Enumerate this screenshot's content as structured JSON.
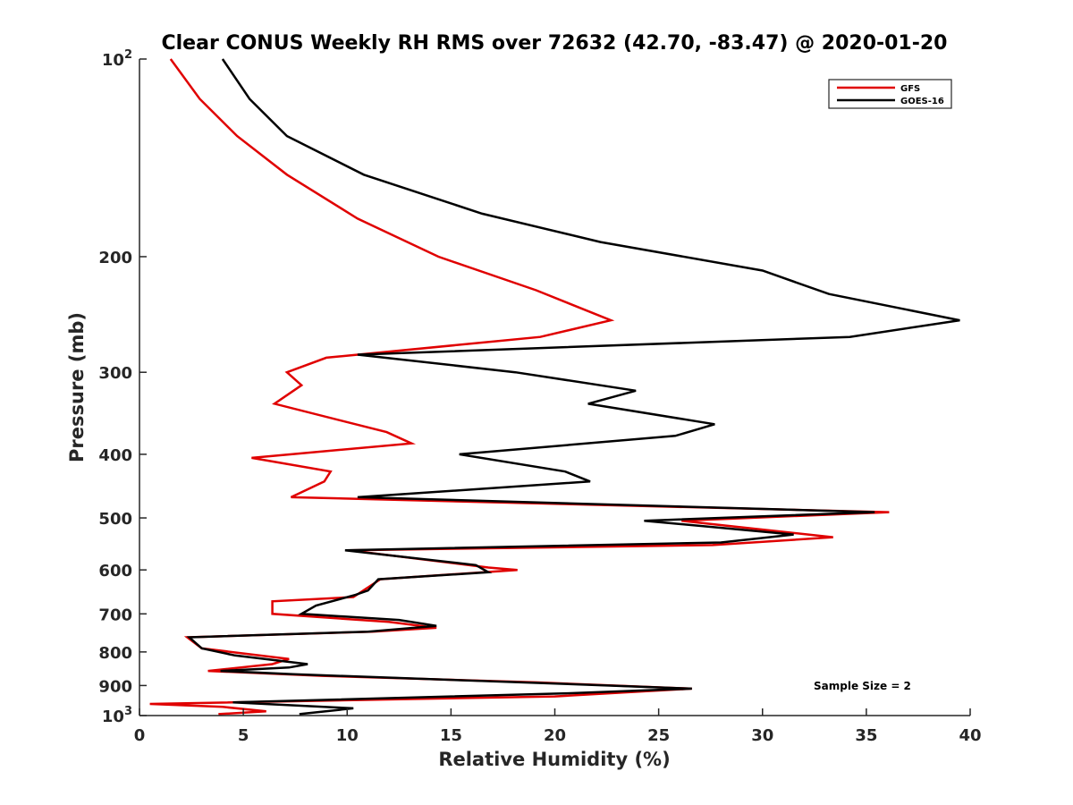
{
  "chart_data": {
    "type": "line",
    "title": "Clear CONUS Weekly RH RMS over 72632 (42.70, -83.47) @ 2020-01-20",
    "xlabel": "Relative Humidity (%)",
    "ylabel": "Pressure (mb)",
    "xlim": [
      0,
      40
    ],
    "ylim": [
      100,
      1000
    ],
    "y_scale": "log",
    "y_reversed": true,
    "x_ticks": [
      "0",
      "5",
      "10",
      "15",
      "20",
      "25",
      "30",
      "35",
      "40"
    ],
    "y_ticks": [
      {
        "value": 100,
        "label": "10",
        "sup": "2"
      },
      {
        "value": 200,
        "label": "200",
        "sup": ""
      },
      {
        "value": 300,
        "label": "300",
        "sup": ""
      },
      {
        "value": 400,
        "label": "400",
        "sup": ""
      },
      {
        "value": 500,
        "label": "500",
        "sup": ""
      },
      {
        "value": 600,
        "label": "600",
        "sup": ""
      },
      {
        "value": 700,
        "label": "700",
        "sup": ""
      },
      {
        "value": 800,
        "label": "800",
        "sup": ""
      },
      {
        "value": 900,
        "label": "900",
        "sup": ""
      },
      {
        "value": 1000,
        "label": "10",
        "sup": "3"
      }
    ],
    "legend_position": "top-right",
    "annotation": "Sample Size = 2",
    "series": [
      {
        "name": "GFS",
        "color": "#e00000",
        "points": [
          [
            1.5,
            100
          ],
          [
            2.9,
            115
          ],
          [
            4.7,
            131
          ],
          [
            7.1,
            150
          ],
          [
            10.5,
            175
          ],
          [
            14.4,
            200
          ],
          [
            19.1,
            225
          ],
          [
            22.7,
            250
          ],
          [
            19.3,
            265
          ],
          [
            9.0,
            285
          ],
          [
            7.1,
            300
          ],
          [
            7.8,
            314
          ],
          [
            6.5,
            335
          ],
          [
            11.9,
            370
          ],
          [
            13.1,
            385
          ],
          [
            5.4,
            405
          ],
          [
            9.2,
            425
          ],
          [
            8.9,
            440
          ],
          [
            7.3,
            465
          ],
          [
            36.1,
            490
          ],
          [
            26.1,
            505
          ],
          [
            33.4,
            535
          ],
          [
            27.6,
            550
          ],
          [
            10.1,
            560
          ],
          [
            16.8,
            595
          ],
          [
            18.2,
            600
          ],
          [
            11.6,
            620
          ],
          [
            10.3,
            660
          ],
          [
            6.4,
            670
          ],
          [
            6.4,
            700
          ],
          [
            12.0,
            720
          ],
          [
            14.3,
            735
          ],
          [
            11.2,
            745
          ],
          [
            2.3,
            760
          ],
          [
            3.0,
            790
          ],
          [
            7.2,
            820
          ],
          [
            6.4,
            835
          ],
          [
            3.3,
            855
          ],
          [
            8.8,
            870
          ],
          [
            19.1,
            890
          ],
          [
            26.6,
            910
          ],
          [
            20.0,
            935
          ],
          [
            0.5,
            960
          ],
          [
            4.0,
            970
          ],
          [
            6.1,
            985
          ],
          [
            3.8,
            995
          ]
        ]
      },
      {
        "name": "GOES-16",
        "color": "#000000",
        "points": [
          [
            4.0,
            100
          ],
          [
            5.3,
            115
          ],
          [
            7.1,
            131
          ],
          [
            10.8,
            150
          ],
          [
            16.5,
            172
          ],
          [
            22.2,
            190
          ],
          [
            30.0,
            210
          ],
          [
            33.2,
            228
          ],
          [
            39.5,
            250
          ],
          [
            34.2,
            265
          ],
          [
            10.5,
            282
          ],
          [
            18.1,
            300
          ],
          [
            23.9,
            320
          ],
          [
            21.6,
            335
          ],
          [
            27.7,
            360
          ],
          [
            25.8,
            375
          ],
          [
            15.4,
            400
          ],
          [
            20.5,
            425
          ],
          [
            21.7,
            440
          ],
          [
            10.5,
            465
          ],
          [
            35.4,
            490
          ],
          [
            24.3,
            505
          ],
          [
            31.5,
            530
          ],
          [
            28.0,
            545
          ],
          [
            9.9,
            560
          ],
          [
            16.2,
            590
          ],
          [
            16.8,
            605
          ],
          [
            11.5,
            620
          ],
          [
            11.0,
            645
          ],
          [
            10.4,
            655
          ],
          [
            8.5,
            680
          ],
          [
            7.8,
            700
          ],
          [
            12.5,
            715
          ],
          [
            14.3,
            730
          ],
          [
            11.0,
            745
          ],
          [
            2.4,
            760
          ],
          [
            3.0,
            790
          ],
          [
            4.6,
            810
          ],
          [
            8.1,
            835
          ],
          [
            7.2,
            845
          ],
          [
            3.9,
            855
          ],
          [
            7.4,
            865
          ],
          [
            20.5,
            895
          ],
          [
            26.6,
            910
          ],
          [
            20.6,
            925
          ],
          [
            4.5,
            955
          ],
          [
            10.3,
            975
          ],
          [
            7.7,
            995
          ]
        ]
      }
    ]
  }
}
